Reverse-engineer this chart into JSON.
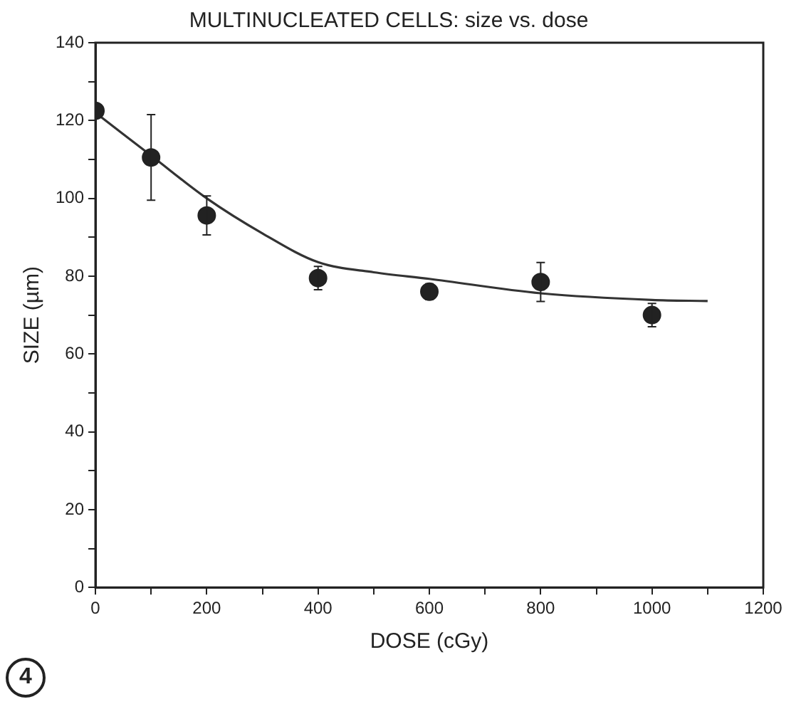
{
  "chart_data": {
    "type": "scatter",
    "title": "MULTINUCLEATED CELLS: size vs. dose",
    "xlabel": "DOSE (cGy)",
    "ylabel": "SIZE (µm)",
    "annotations": [
      "4"
    ],
    "x": [
      0,
      100,
      200,
      400,
      600,
      800,
      1000
    ],
    "series": [
      {
        "color": "#222222",
        "values": [
          122.5,
          110.5,
          95.6,
          79.5,
          76,
          78.5,
          70
        ],
        "errors": [
          null,
          11,
          5,
          3,
          2,
          5,
          3
        ],
        "marker": "circle"
      },
      {
        "type": "line",
        "color": "#333333",
        "x": [
          0,
          100,
          200,
          300,
          400,
          500,
          600,
          800,
          1000,
          1100
        ],
        "values": [
          122,
          111,
          100,
          91,
          83.6,
          81,
          79.3,
          75.6,
          73.9,
          73.6
        ],
        "marker": "none",
        "line_style": "solid"
      }
    ],
    "xlim": [
      0,
      1200
    ],
    "xticks": [
      0,
      {
        "value": 100,
        "label": null
      },
      200,
      {
        "value": 300,
        "label": null
      },
      400,
      {
        "value": 500,
        "label": null
      },
      600,
      {
        "value": 700,
        "label": null
      },
      800,
      {
        "value": 900,
        "label": null
      },
      1000,
      {
        "value": 1100,
        "label": null
      },
      1200
    ],
    "ylim": [
      0,
      140
    ],
    "yticks": [
      0,
      {
        "value": 10,
        "label": null
      },
      20,
      {
        "value": 30,
        "label": null
      },
      40,
      {
        "value": 50,
        "label": null
      },
      60,
      {
        "value": 70,
        "label": null
      },
      80,
      {
        "value": 90,
        "label": null
      },
      100,
      {
        "value": 110,
        "label": null
      },
      120,
      {
        "value": 130,
        "label": null
      },
      140
    ],
    "legend": false
  }
}
